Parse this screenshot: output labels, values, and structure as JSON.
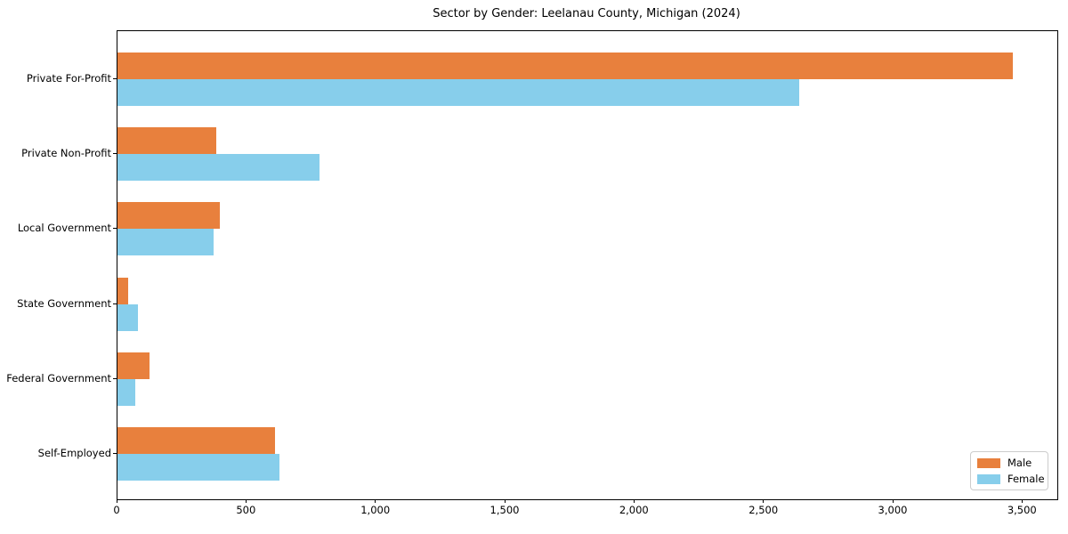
{
  "title": "Sector by Gender: Leelanau County, Michigan (2024)",
  "legend": {
    "position": "lower right",
    "items": [
      {
        "label": "Male",
        "color": "#e8803d"
      },
      {
        "label": "Female",
        "color": "#87ceeb"
      }
    ]
  },
  "chart_data": {
    "type": "bar",
    "orientation": "horizontal",
    "title": "Sector by Gender: Leelanau County, Michigan (2024)",
    "categories": [
      "Private For-Profit",
      "Private Non-Profit",
      "Local Government",
      "State Government",
      "Federal Government",
      "Self-Employed"
    ],
    "series": [
      {
        "name": "Male",
        "color": "#e8803d",
        "values": [
          3460,
          380,
          395,
          42,
          122,
          610
        ]
      },
      {
        "name": "Female",
        "color": "#87ceeb",
        "values": [
          2635,
          780,
          370,
          80,
          67,
          625
        ]
      }
    ],
    "xlabel": "",
    "ylabel": "",
    "xlim": [
      0,
      3633
    ],
    "x_ticks": [
      0,
      500,
      1000,
      1500,
      2000,
      2500,
      3000,
      3500
    ],
    "x_tick_labels": [
      "0",
      "500",
      "1,000",
      "1,500",
      "2,000",
      "2,500",
      "3,000",
      "3,500"
    ],
    "grid": false,
    "legend_position": "lower right"
  }
}
